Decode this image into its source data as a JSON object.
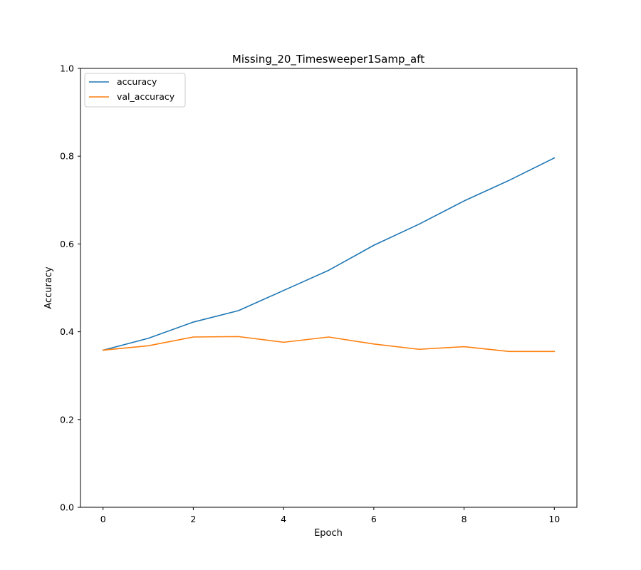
{
  "chart_data": {
    "type": "line",
    "title": "Missing_20_Timesweeper1Samp_aft",
    "xlabel": "Epoch",
    "ylabel": "Accuracy",
    "xlim": [
      -0.5,
      10.5
    ],
    "ylim": [
      0.0,
      1.0
    ],
    "xticks": [
      0,
      2,
      4,
      6,
      8,
      10
    ],
    "yticks": [
      0.0,
      0.2,
      0.4,
      0.6,
      0.8,
      1.0
    ],
    "xtick_labels": [
      "0",
      "2",
      "4",
      "6",
      "8",
      "10"
    ],
    "ytick_labels": [
      "0.0",
      "0.2",
      "0.4",
      "0.6",
      "0.8",
      "1.0"
    ],
    "grid": false,
    "legend_position": "top-left",
    "x": [
      0,
      1,
      2,
      3,
      4,
      5,
      6,
      7,
      8,
      9,
      10
    ],
    "series": [
      {
        "name": "accuracy",
        "color": "#1f77b4",
        "values": [
          0.358,
          0.385,
          0.422,
          0.448,
          0.494,
          0.54,
          0.597,
          0.645,
          0.698,
          0.745,
          0.796
        ]
      },
      {
        "name": "val_accuracy",
        "color": "#ff7f0e",
        "values": [
          0.358,
          0.368,
          0.388,
          0.389,
          0.376,
          0.388,
          0.372,
          0.36,
          0.366,
          0.355,
          0.355
        ]
      }
    ]
  }
}
